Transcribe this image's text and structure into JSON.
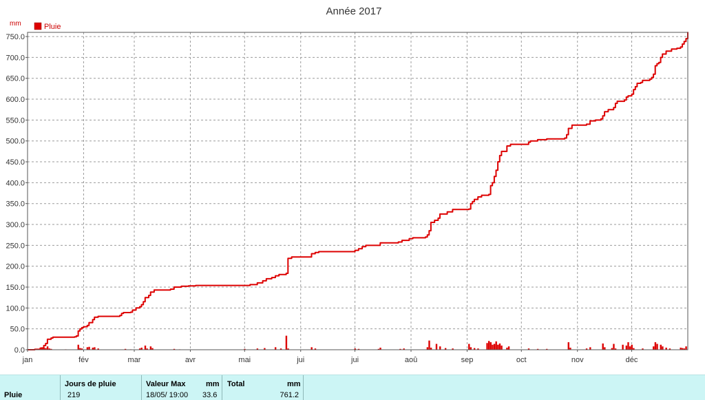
{
  "chart_data": {
    "type": "line",
    "title": "Année 2017",
    "yunit": "mm",
    "legend": [
      {
        "name": "Pluie",
        "color": "#dd0000"
      }
    ],
    "ylim": [
      0,
      760
    ],
    "yticks": [
      "0.0",
      "50.0",
      "100.0",
      "150.0",
      "200.0",
      "250.0",
      "300.0",
      "350.0",
      "400.0",
      "450.0",
      "500.0",
      "550.0",
      "600.0",
      "650.0",
      "700.0",
      "750.0"
    ],
    "xlim": [
      1,
      366
    ],
    "x_month_starts": [
      1,
      32,
      60,
      91,
      121,
      152,
      182,
      213,
      244,
      274,
      305,
      335
    ],
    "xtick_labels": [
      "jan",
      "fév",
      "mar",
      "avr",
      "mai",
      "juin",
      "juil",
      "août",
      "sep",
      "oct",
      "nov",
      "déc"
    ],
    "xtick_display": [
      "jan",
      "fév",
      "mar",
      "avr",
      "mai",
      "jui",
      "jui",
      "aoû",
      "sep",
      "oct",
      "nov",
      "déc"
    ],
    "grid": true,
    "legend_position": "top-left",
    "cumulative": {
      "name": "Pluie",
      "color": "#dd0000",
      "points": [
        [
          1,
          0
        ],
        [
          5,
          1
        ],
        [
          8,
          4
        ],
        [
          10,
          10
        ],
        [
          11,
          15
        ],
        [
          12,
          25
        ],
        [
          14,
          28
        ],
        [
          15,
          30
        ],
        [
          20,
          30
        ],
        [
          27,
          31
        ],
        [
          28,
          33
        ],
        [
          29,
          45
        ],
        [
          30,
          50
        ],
        [
          31,
          53
        ],
        [
          32,
          55
        ],
        [
          34,
          58
        ],
        [
          35,
          65
        ],
        [
          37,
          72
        ],
        [
          38,
          78
        ],
        [
          40,
          80
        ],
        [
          50,
          80
        ],
        [
          52,
          82
        ],
        [
          53,
          87
        ],
        [
          54,
          89
        ],
        [
          58,
          90
        ],
        [
          59,
          95
        ],
        [
          61,
          100
        ],
        [
          63,
          103
        ],
        [
          64,
          108
        ],
        [
          65,
          115
        ],
        [
          66,
          125
        ],
        [
          68,
          130
        ],
        [
          69,
          138
        ],
        [
          71,
          143
        ],
        [
          80,
          145
        ],
        [
          82,
          150
        ],
        [
          86,
          152
        ],
        [
          90,
          153
        ],
        [
          94,
          154
        ],
        [
          121,
          154
        ],
        [
          124,
          156
        ],
        [
          128,
          160
        ],
        [
          131,
          165
        ],
        [
          133,
          170
        ],
        [
          136,
          173
        ],
        [
          138,
          177
        ],
        [
          140,
          180
        ],
        [
          144,
          183
        ],
        [
          145,
          219
        ],
        [
          147,
          222
        ],
        [
          157,
          222
        ],
        [
          158,
          230
        ],
        [
          160,
          233
        ],
        [
          162,
          235
        ],
        [
          180,
          235
        ],
        [
          182,
          238
        ],
        [
          184,
          242
        ],
        [
          186,
          247
        ],
        [
          188,
          250
        ],
        [
          195,
          250
        ],
        [
          196,
          256
        ],
        [
          206,
          258
        ],
        [
          208,
          262
        ],
        [
          212,
          266
        ],
        [
          214,
          268
        ],
        [
          221,
          270
        ],
        [
          222,
          275
        ],
        [
          223,
          285
        ],
        [
          224,
          305
        ],
        [
          226,
          310
        ],
        [
          228,
          315
        ],
        [
          229,
          325
        ],
        [
          233,
          330
        ],
        [
          236,
          336
        ],
        [
          245,
          337
        ],
        [
          246,
          350
        ],
        [
          247,
          355
        ],
        [
          248,
          360
        ],
        [
          250,
          366
        ],
        [
          252,
          370
        ],
        [
          256,
          372
        ],
        [
          257,
          393
        ],
        [
          258,
          400
        ],
        [
          259,
          415
        ],
        [
          260,
          430
        ],
        [
          261,
          450
        ],
        [
          262,
          465
        ],
        [
          263,
          475
        ],
        [
          266,
          488
        ],
        [
          268,
          492
        ],
        [
          277,
          492
        ],
        [
          278,
          497
        ],
        [
          279,
          500
        ],
        [
          283,
          503
        ],
        [
          288,
          505
        ],
        [
          298,
          507
        ],
        [
          299,
          515
        ],
        [
          300,
          530
        ],
        [
          302,
          538
        ],
        [
          308,
          538
        ],
        [
          310,
          540
        ],
        [
          312,
          548
        ],
        [
          315,
          550
        ],
        [
          318,
          553
        ],
        [
          319,
          560
        ],
        [
          320,
          570
        ],
        [
          322,
          575
        ],
        [
          324,
          575
        ],
        [
          325,
          580
        ],
        [
          326,
          590
        ],
        [
          327,
          595
        ],
        [
          331,
          598
        ],
        [
          332,
          605
        ],
        [
          333,
          608
        ],
        [
          335,
          612
        ],
        [
          336,
          623
        ],
        [
          337,
          630
        ],
        [
          338,
          638
        ],
        [
          340,
          640
        ],
        [
          341,
          645
        ],
        [
          345,
          648
        ],
        [
          346,
          652
        ],
        [
          347,
          660
        ],
        [
          348,
          680
        ],
        [
          349,
          685
        ],
        [
          350,
          688
        ],
        [
          351,
          700
        ],
        [
          352,
          708
        ],
        [
          354,
          715
        ],
        [
          357,
          720
        ],
        [
          360,
          722
        ],
        [
          362,
          725
        ],
        [
          363,
          732
        ],
        [
          364,
          738
        ],
        [
          365,
          745
        ],
        [
          366,
          761
        ]
      ]
    },
    "daily": {
      "name": "Pluie",
      "color": "#dd0000",
      "points": [
        [
          8,
          3
        ],
        [
          9,
          6
        ],
        [
          10,
          5
        ],
        [
          11,
          4
        ],
        [
          12,
          8
        ],
        [
          13,
          3
        ],
        [
          14,
          2
        ],
        [
          22,
          1
        ],
        [
          29,
          12
        ],
        [
          30,
          4
        ],
        [
          31,
          3
        ],
        [
          34,
          6
        ],
        [
          35,
          7
        ],
        [
          37,
          5
        ],
        [
          38,
          6
        ],
        [
          40,
          3
        ],
        [
          55,
          2
        ],
        [
          58,
          1
        ],
        [
          63,
          3
        ],
        [
          64,
          5
        ],
        [
          66,
          10
        ],
        [
          67,
          3
        ],
        [
          69,
          8
        ],
        [
          70,
          4
        ],
        [
          82,
          2
        ],
        [
          85,
          1
        ],
        [
          121,
          2
        ],
        [
          128,
          3
        ],
        [
          132,
          4
        ],
        [
          138,
          6
        ],
        [
          141,
          3
        ],
        [
          144,
          33.6
        ],
        [
          145,
          3
        ],
        [
          158,
          6
        ],
        [
          160,
          3
        ],
        [
          182,
          3
        ],
        [
          184,
          2
        ],
        [
          195,
          2
        ],
        [
          196,
          5
        ],
        [
          207,
          2
        ],
        [
          209,
          3
        ],
        [
          222,
          6
        ],
        [
          223,
          22
        ],
        [
          224,
          5
        ],
        [
          227,
          14
        ],
        [
          229,
          8
        ],
        [
          232,
          4
        ],
        [
          236,
          3
        ],
        [
          245,
          14
        ],
        [
          246,
          6
        ],
        [
          248,
          4
        ],
        [
          250,
          3
        ],
        [
          255,
          16
        ],
        [
          256,
          21
        ],
        [
          257,
          18
        ],
        [
          258,
          12
        ],
        [
          259,
          14
        ],
        [
          260,
          20
        ],
        [
          261,
          12
        ],
        [
          262,
          15
        ],
        [
          263,
          10
        ],
        [
          266,
          5
        ],
        [
          267,
          8
        ],
        [
          278,
          3
        ],
        [
          283,
          2
        ],
        [
          288,
          2
        ],
        [
          300,
          18
        ],
        [
          301,
          5
        ],
        [
          310,
          3
        ],
        [
          312,
          6
        ],
        [
          319,
          15
        ],
        [
          320,
          6
        ],
        [
          324,
          4
        ],
        [
          325,
          14
        ],
        [
          326,
          3
        ],
        [
          330,
          12
        ],
        [
          332,
          10
        ],
        [
          333,
          18
        ],
        [
          334,
          8
        ],
        [
          335,
          12
        ],
        [
          336,
          4
        ],
        [
          341,
          3
        ],
        [
          347,
          8
        ],
        [
          348,
          18
        ],
        [
          349,
          14
        ],
        [
          351,
          12
        ],
        [
          352,
          8
        ],
        [
          354,
          5
        ],
        [
          356,
          3
        ],
        [
          362,
          5
        ],
        [
          363,
          4
        ],
        [
          364,
          3
        ],
        [
          365,
          8
        ]
      ]
    }
  },
  "stats": {
    "row_label": "Pluie",
    "rain_days": {
      "header": "Jours de pluie",
      "value": "219"
    },
    "max_value": {
      "header": "Valeur Max",
      "unit": "mm",
      "date": "18/05/ 19:00",
      "value": "33.6"
    },
    "total": {
      "header": "Total",
      "unit": "mm",
      "value": "761.2"
    }
  }
}
